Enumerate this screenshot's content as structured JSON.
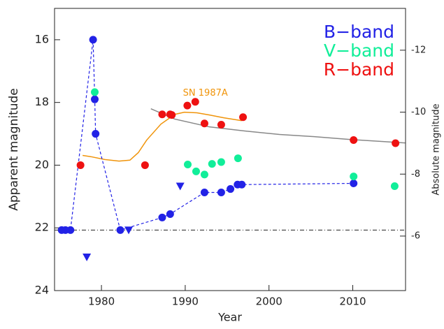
{
  "chart_data": {
    "type": "scatter",
    "x_label": "Year",
    "y_label": "Apparent magnitude",
    "y2_label": "Absolute magnitude",
    "xlim": [
      1974.4,
      2016.3
    ],
    "xticks": [
      1980,
      1990,
      2000,
      2010
    ],
    "ylim": [
      24,
      15
    ],
    "yticks": [
      16,
      18,
      20,
      22,
      24
    ],
    "y2lim": [
      -4.24,
      -13.35
    ],
    "y2ticks": [
      -12,
      -10,
      -8,
      -6
    ],
    "legend": "upper right",
    "series": [
      {
        "name": "B−band",
        "color": "#2222e6",
        "connect": "dashed",
        "x": [
          1975.25,
          1975.7,
          1976.3,
          1979.0,
          1979.2,
          1979.3,
          1982.25,
          1987.25,
          1988.2,
          1992.3,
          1994.3,
          1995.4,
          1996.25,
          1996.75,
          2010.1
        ],
        "values": [
          22.07,
          22.07,
          22.07,
          16.0,
          17.9,
          19.0,
          22.07,
          21.67,
          21.56,
          20.87,
          20.87,
          20.76,
          20.62,
          20.62,
          20.58
        ],
        "upper_limits": {
          "x": [
            1978.25,
            1983.25,
            1989.4
          ],
          "values": [
            22.93,
            22.07,
            20.67
          ]
        }
      },
      {
        "name": "V−band",
        "color": "#11ee99",
        "x": [
          1979.2,
          1990.3,
          1991.3,
          1992.3,
          1993.2,
          1994.3,
          1996.3,
          2010.1,
          2015.0
        ],
        "values": [
          17.67,
          19.98,
          20.2,
          20.3,
          19.96,
          19.9,
          19.78,
          20.36,
          20.67
        ]
      },
      {
        "name": "R−band",
        "color": "#ee1111",
        "x": [
          1977.5,
          1985.2,
          1987.25,
          1988.2,
          1988.4,
          1990.25,
          1991.2,
          1992.3,
          1994.3,
          1996.9,
          2010.1,
          2015.1
        ],
        "values": [
          20.0,
          20.0,
          18.38,
          18.38,
          18.4,
          18.1,
          17.98,
          18.67,
          18.71,
          18.47,
          19.2,
          19.3
        ]
      }
    ],
    "lines": [
      {
        "label": "SN 1987A",
        "color": "#f0940a",
        "x": [
          1977.75,
          1978.75,
          1980.4,
          1982.1,
          1983.4,
          1984.4,
          1985.4,
          1987.1,
          1988.75,
          1989.9,
          1991.4,
          1992.9,
          1994.6,
          1996.75
        ],
        "values": [
          19.69,
          19.73,
          19.82,
          19.87,
          19.84,
          19.6,
          19.2,
          18.69,
          18.38,
          18.31,
          18.33,
          18.4,
          18.49,
          18.58
        ]
      },
      {
        "color": "#888888",
        "x": [
          1985.9,
          1988.75,
          1992.9,
          1997.1,
          2001.25,
          2005.4,
          2009.6,
          2016.25
        ],
        "values": [
          18.2,
          18.53,
          18.78,
          18.91,
          19.02,
          19.09,
          19.18,
          19.29
        ]
      }
    ],
    "reference_line": 22.07
  }
}
